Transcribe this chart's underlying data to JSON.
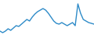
{
  "x": [
    0,
    1,
    2,
    3,
    4,
    5,
    6,
    7,
    8,
    9,
    10,
    11,
    12,
    13,
    14,
    15,
    16,
    17,
    18,
    19,
    20,
    21,
    22,
    23,
    24,
    25,
    26,
    27,
    28,
    29,
    30,
    31,
    32,
    33,
    34,
    35
  ],
  "y": [
    15,
    13,
    15,
    18,
    16,
    19,
    22,
    21,
    24,
    27,
    30,
    28,
    33,
    37,
    40,
    42,
    44,
    42,
    38,
    33,
    28,
    25,
    24,
    26,
    24,
    22,
    24,
    26,
    22,
    50,
    38,
    30,
    28,
    26,
    25,
    24
  ],
  "line_color": "#2e8bc8",
  "background_color": "#ffffff",
  "ylim": [
    10,
    55
  ],
  "linewidth": 1.0
}
